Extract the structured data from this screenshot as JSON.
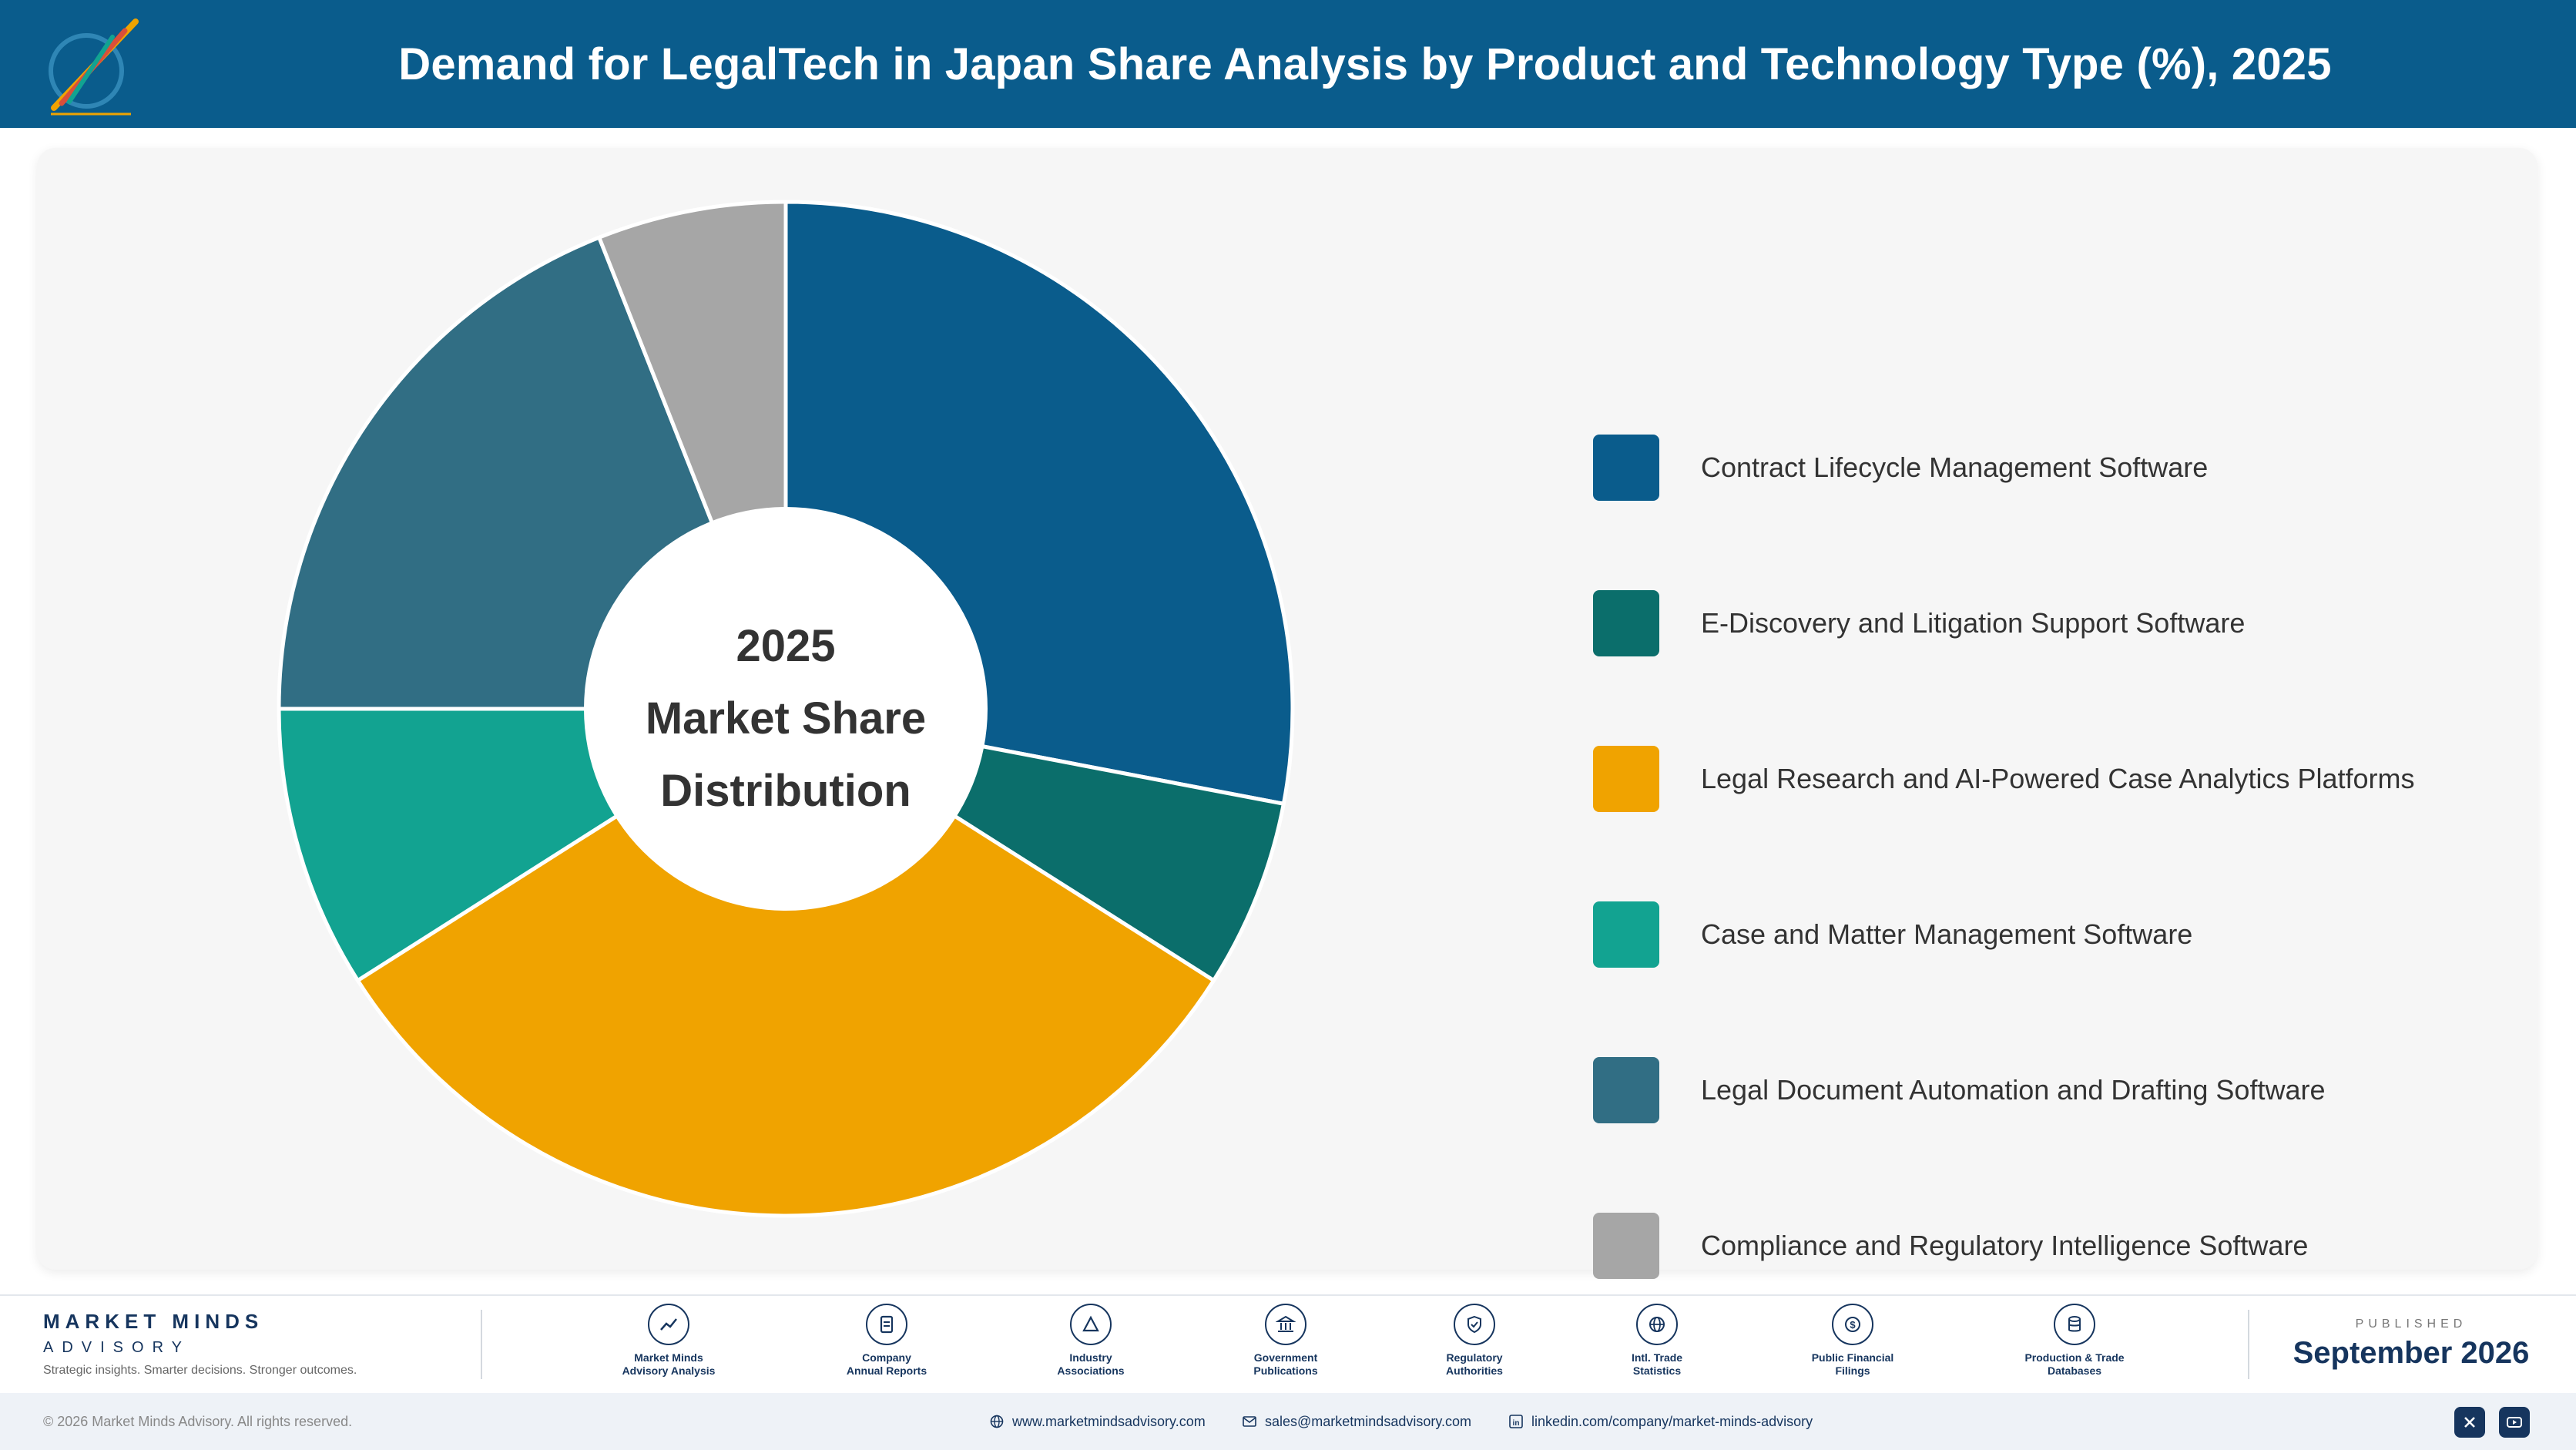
{
  "header": {
    "title": "Demand for LegalTech in Japan Share Analysis by Product and Technology Type (%), 2025",
    "logo_icon": "pencils-logo-icon"
  },
  "chart_data": {
    "type": "pie",
    "variant": "donut",
    "center_label": [
      "2025",
      "Market Share",
      "Distribution"
    ],
    "series": [
      {
        "name": "Contract Lifecycle Management Software",
        "value": 28,
        "color": "#0a5c8c"
      },
      {
        "name": "E-Discovery and Litigation Support Software",
        "value": 6,
        "color": "#0b6e6b"
      },
      {
        "name": "Legal Research and AI-Powered Case Analytics Platforms",
        "value": 32,
        "color": "#f0a300"
      },
      {
        "name": "Case and Matter Management Software",
        "value": 9,
        "color": "#12a391"
      },
      {
        "name": "Legal Document Automation and Drafting Software",
        "value": 19,
        "color": "#316e84"
      },
      {
        "name": "Compliance and Regulatory Intelligence Software",
        "value": 6,
        "color": "#a6a6a6"
      }
    ],
    "legend_position": "right",
    "start_angle": "top, clockwise"
  },
  "footer": {
    "brand": {
      "name": "MARKET MINDS",
      "sub": "ADVISORY",
      "tagline": "Strategic insights. Smarter decisions. Stronger outcomes."
    },
    "sources": [
      {
        "label": "Market Minds\nAdvisory Analysis",
        "icon": "trend-chart-icon"
      },
      {
        "label": "Company\nAnnual Reports",
        "icon": "document-icon"
      },
      {
        "label": "Industry\nAssociations",
        "icon": "network-icon"
      },
      {
        "label": "Government\nPublications",
        "icon": "government-building-icon"
      },
      {
        "label": "Regulatory\nAuthorities",
        "icon": "shield-check-icon"
      },
      {
        "label": "Intl. Trade\nStatistics",
        "icon": "globe-icon"
      },
      {
        "label": "Public Financial\nFilings",
        "icon": "dollar-coin-icon"
      },
      {
        "label": "Production & Trade\nDatabases",
        "icon": "database-icon"
      }
    ],
    "published_label": "PUBLISHED",
    "published_value": "September 2026",
    "copyright": "© 2026 Market Minds Advisory. All rights reserved.",
    "website": "www.marketmindsadvisory.com",
    "email": "sales@marketmindsadvisory.com",
    "linkedin": "linkedin.com/company/market-minds-advisory",
    "social": [
      "x-icon",
      "youtube-icon"
    ]
  }
}
